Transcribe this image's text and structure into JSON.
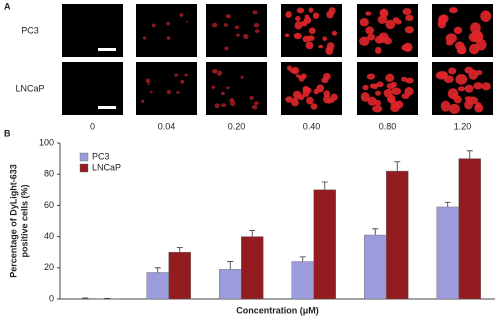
{
  "panel_a": {
    "label": "A",
    "rows": [
      "PC3",
      "LNCaP"
    ]
  },
  "chart_data": {
    "type": "bar",
    "panel_label": "B",
    "categories": [
      "0",
      "0.04",
      "0.20",
      "0.40",
      "0.80",
      "1.20"
    ],
    "series": [
      {
        "name": "PC3",
        "color": "#9c9cdc",
        "values": [
          0.3,
          17,
          19,
          24,
          41,
          59
        ],
        "errors": [
          0.3,
          3,
          5,
          3,
          4,
          3
        ]
      },
      {
        "name": "LNCaP",
        "color": "#921c1f",
        "values": [
          0.2,
          30,
          40,
          70,
          82,
          90
        ],
        "errors": [
          0.2,
          3,
          4,
          5,
          6,
          5
        ]
      }
    ],
    "ylim": [
      0,
      100
    ],
    "yticks": [
      0,
      20,
      40,
      60,
      80,
      100
    ],
    "y_label": [
      "Percentage of DyLight-633",
      "positive cells (%)"
    ],
    "x_label": "Concentration (μM)",
    "legend": "upper left"
  }
}
